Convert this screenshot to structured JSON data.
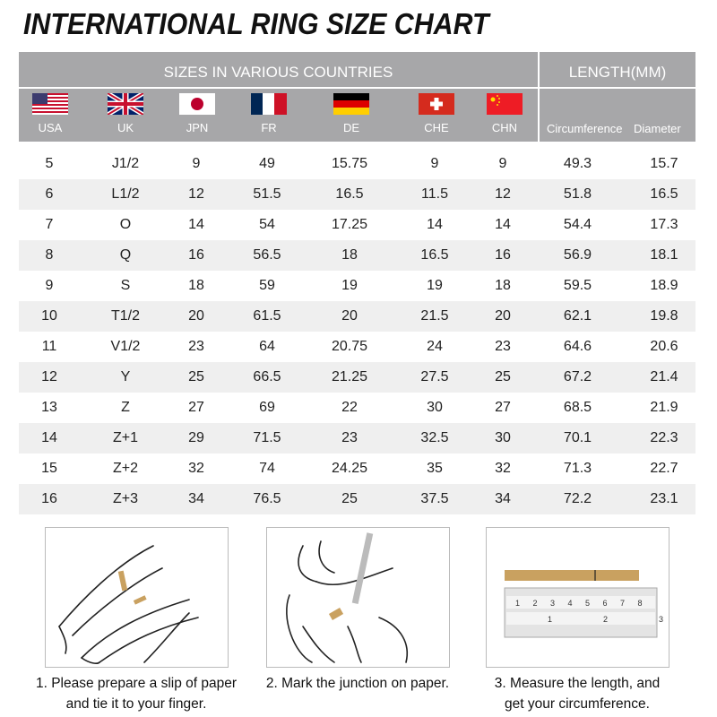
{
  "title": "INTERNATIONAL RING SIZE CHART",
  "header": {
    "sizes_title": "SIZES IN VARIOUS COUNTRIES",
    "length_title": "LENGTH(MM)",
    "countries": [
      {
        "code": "USA",
        "flag": "us-flag"
      },
      {
        "code": "UK",
        "flag": "uk-flag"
      },
      {
        "code": "JPN",
        "flag": "japan-flag"
      },
      {
        "code": "FR",
        "flag": "france-flag"
      },
      {
        "code": "DE",
        "flag": "germany-flag"
      },
      {
        "code": "CHE",
        "flag": "switzerland-flag"
      },
      {
        "code": "CHN",
        "flag": "china-flag"
      }
    ],
    "circumference": "Circumference",
    "diameter": "Diameter"
  },
  "rows": [
    [
      "5",
      "J1/2",
      "9",
      "49",
      "15.75",
      "9",
      "9",
      "49.3",
      "15.7"
    ],
    [
      "6",
      "L1/2",
      "12",
      "51.5",
      "16.5",
      "11.5",
      "12",
      "51.8",
      "16.5"
    ],
    [
      "7",
      "O",
      "14",
      "54",
      "17.25",
      "14",
      "14",
      "54.4",
      "17.3"
    ],
    [
      "8",
      "Q",
      "16",
      "56.5",
      "18",
      "16.5",
      "16",
      "56.9",
      "18.1"
    ],
    [
      "9",
      "S",
      "18",
      "59",
      "19",
      "19",
      "18",
      "59.5",
      "18.9"
    ],
    [
      "10",
      "T1/2",
      "20",
      "61.5",
      "20",
      "21.5",
      "20",
      "62.1",
      "19.8"
    ],
    [
      "11",
      "V1/2",
      "23",
      "64",
      "20.75",
      "24",
      "23",
      "64.6",
      "20.6"
    ],
    [
      "12",
      "Y",
      "25",
      "66.5",
      "21.25",
      "27.5",
      "25",
      "67.2",
      "21.4"
    ],
    [
      "13",
      "Z",
      "27",
      "69",
      "22",
      "30",
      "27",
      "68.5",
      "21.9"
    ],
    [
      "14",
      "Z+1",
      "29",
      "71.5",
      "23",
      "32.5",
      "30",
      "70.1",
      "22.3"
    ],
    [
      "15",
      "Z+2",
      "32",
      "74",
      "24.25",
      "35",
      "32",
      "71.3",
      "22.7"
    ],
    [
      "16",
      "Z+3",
      "34",
      "76.5",
      "25",
      "37.5",
      "34",
      "72.2",
      "23.1"
    ]
  ],
  "steps": [
    {
      "line1": "1. Please prepare a slip of paper",
      "line2": "and tie it to your finger."
    },
    {
      "line1": "2. Mark the junction on paper.",
      "line2": ""
    },
    {
      "line1": "3. Measure the length, and",
      "line2": "get your circumference."
    }
  ],
  "ruler": {
    "top_marks": [
      "1",
      "2",
      "3",
      "4",
      "5",
      "6",
      "7",
      "8"
    ],
    "bottom_marks": [
      "1",
      "2",
      "3"
    ]
  },
  "colors": {
    "header": "#a7a7a9",
    "row_alt": "#efefef",
    "paper": "#c9a160"
  }
}
